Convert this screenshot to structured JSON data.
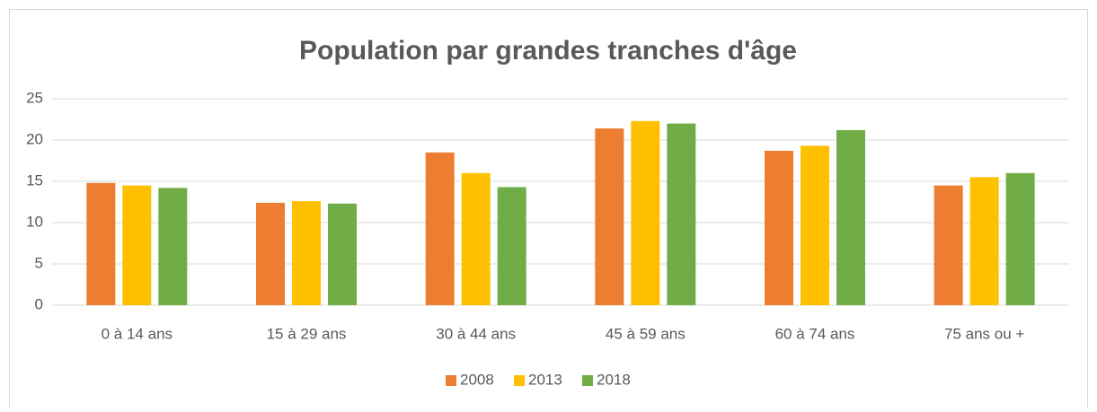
{
  "chart_data": {
    "type": "bar",
    "title": "Population par grandes tranches d'âge",
    "categories": [
      "0 à 14 ans",
      "15 à 29 ans",
      "30 à 44 ans",
      "45 à 59 ans",
      "60 à 74 ans",
      "75 ans ou +"
    ],
    "series": [
      {
        "name": "2008",
        "color": "#ED7D31",
        "values": [
          14.8,
          12.4,
          18.5,
          21.4,
          18.7,
          14.5
        ]
      },
      {
        "name": "2013",
        "color": "#FFC000",
        "values": [
          14.5,
          12.6,
          16.0,
          22.3,
          19.3,
          15.5
        ]
      },
      {
        "name": "2018",
        "color": "#70AD47",
        "values": [
          14.2,
          12.3,
          14.3,
          22.0,
          21.2,
          16.0
        ]
      }
    ],
    "ylim": [
      0,
      25
    ],
    "yticks": [
      0,
      5,
      10,
      15,
      20,
      25
    ],
    "grid": true,
    "legend": "bottom"
  }
}
